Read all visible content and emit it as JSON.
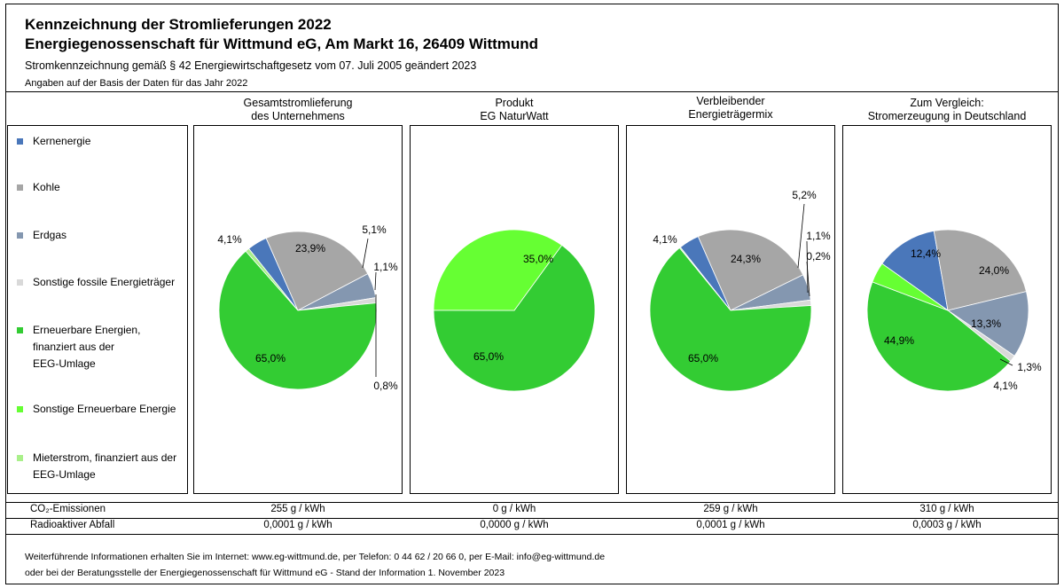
{
  "header": {
    "title_line1": "Kennzeichnung der Stromlieferungen 2022",
    "title_line2": "Energiegenossenschaft für Wittmund eG, Am Markt 16, 26409 Wittmund",
    "subtitle": "Stromkennzeichnung gemäß § 42 Energiewirtschaftgesetz vom 07. Juli 2005 geändert 2023",
    "basis_note": "Angaben auf der Basis der Daten für das Jahr 2022"
  },
  "colors": {
    "Kernenergie": "#4a77ba",
    "Kohle": "#a6a6a6",
    "Erdgas": "#8497b0",
    "Sonstige fossile Energieträger": "#d9d9d9",
    "Erneuerbare Energien, finanziert aus der EEG-Umlage": "#33cc33",
    "Sonstige Erneuerbare Energie": "#66ff33",
    "Mieterstrom, finanziert aus der EEG-Umlage": "#a9f08a"
  },
  "legend": [
    {
      "lines": [
        "Kernenergie"
      ]
    },
    {
      "lines": [
        "Kohle"
      ]
    },
    {
      "lines": [
        "Erdgas"
      ]
    },
    {
      "lines": [
        "Sonstige fossile Energieträger"
      ]
    },
    {
      "lines": [
        "Erneuerbare Energien,",
        "finanziert aus der",
        "EEG-Umlage"
      ]
    },
    {
      "lines": [
        "Sonstige Erneuerbare Energie"
      ]
    },
    {
      "lines": [
        "Mieterstrom, finanziert aus der",
        "EEG-Umlage"
      ]
    }
  ],
  "chart_data": [
    {
      "type": "pie",
      "title": [
        "Gesamtstromlieferung",
        "des Unternehmens"
      ],
      "categories": [
        "Kernenergie",
        "Kohle",
        "Erdgas",
        "Sonstige fossile Energieträger",
        "Erneuerbare Energien, finanziert aus der EEG-Umlage",
        "Sonstige Erneuerbare Energie",
        "Mieterstrom, finanziert aus der EEG-Umlage"
      ],
      "values": [
        4.1,
        23.9,
        5.1,
        1.1,
        65.0,
        0.0,
        0.8
      ],
      "labels": [
        "4,1%",
        "23,9%",
        "5,1%",
        "1,1%",
        "65,0%",
        "",
        "0,8%"
      ]
    },
    {
      "type": "pie",
      "title": [
        "Produkt",
        "EG NaturWatt"
      ],
      "categories": [
        "Erneuerbare Energien, finanziert aus der EEG-Umlage",
        "Sonstige Erneuerbare Energie"
      ],
      "values": [
        65.0,
        35.0
      ],
      "labels": [
        "65,0%",
        "35,0%"
      ]
    },
    {
      "type": "pie",
      "title": [
        "Verbleibender",
        "Energieträgermix"
      ],
      "categories": [
        "Kernenergie",
        "Kohle",
        "Erdgas",
        "Sonstige fossile Energieträger",
        "Erneuerbare Energien, finanziert aus der EEG-Umlage",
        "Mieterstrom, finanziert aus der EEG-Umlage"
      ],
      "values": [
        4.1,
        24.3,
        5.2,
        1.1,
        65.0,
        0.2
      ],
      "labels": [
        "4,1%",
        "24,3%",
        "5,2%",
        "1,1%",
        "65,0%",
        "0,2%"
      ]
    },
    {
      "type": "pie",
      "title": [
        "Zum Vergleich:",
        "Stromerzeugung in Deutschland"
      ],
      "categories": [
        "Kernenergie",
        "Kohle",
        "Erdgas",
        "Sonstige fossile Energieträger",
        "Erneuerbare Energien, finanziert aus der EEG-Umlage",
        "Sonstige Erneuerbare Energie"
      ],
      "values": [
        12.4,
        24.0,
        13.3,
        1.3,
        44.9,
        4.1
      ],
      "labels": [
        "12,4%",
        "24,0%",
        "13,3%",
        "1,3%",
        "44,9%",
        "4,1%"
      ]
    }
  ],
  "emissions": {
    "co2_label": "CO₂-Emissionen",
    "co2_values": [
      "255 g / kWh",
      "0 g / kWh",
      "259 g / kWh",
      "310 g / kWh"
    ],
    "waste_label": "Radioaktiver Abfall",
    "waste_values": [
      "0,0001 g / kWh",
      "0,0000 g / kWh",
      "0,0001 g / kWh",
      "0,0003 g / kWh"
    ]
  },
  "footer": {
    "line1": "Weiterführende Informationen erhalten Sie im Internet: www.eg-wittmund.de, per Telefon: 0 44 62 / 20 66 0, per E-Mail: info@eg-wittmund.de",
    "line2": "oder bei der Beratungsstelle der Energiegenossenschaft für Wittmund eG - Stand der Information 1. November 2023"
  }
}
